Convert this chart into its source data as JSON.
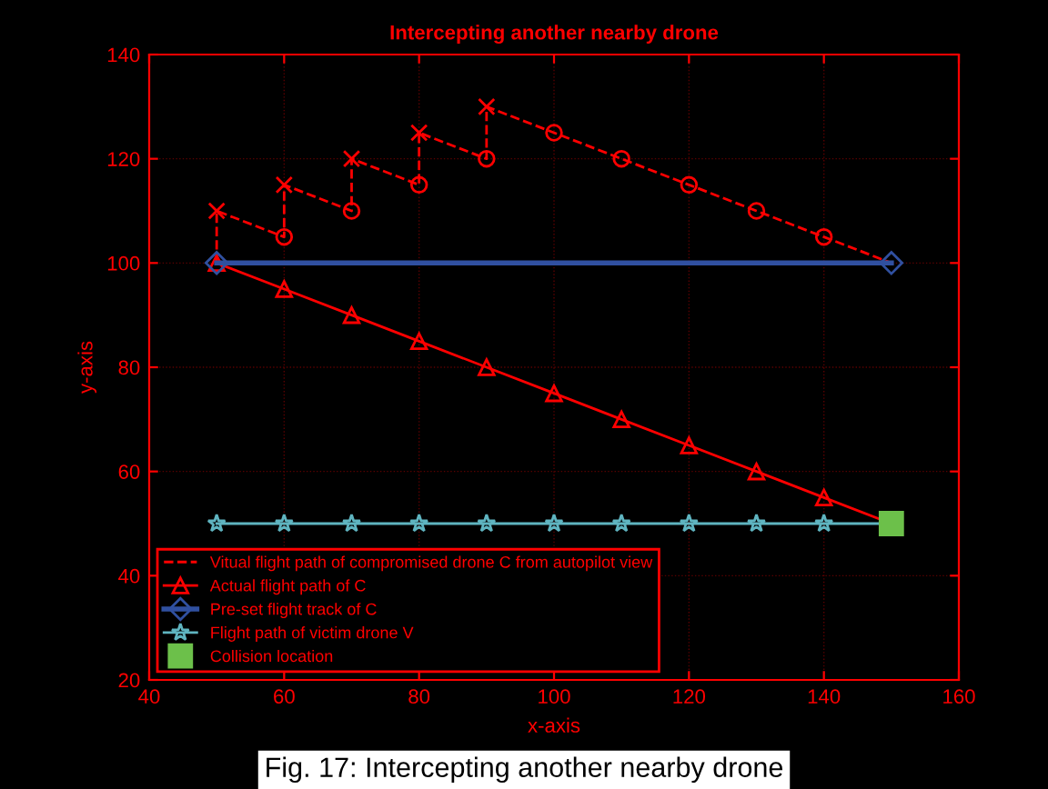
{
  "chart_data": {
    "type": "line",
    "title": "Intercepting another nearby drone",
    "xlabel": "x-axis",
    "ylabel": "y-axis",
    "xlim": [
      40,
      160
    ],
    "xticks": [
      40,
      60,
      80,
      100,
      120,
      140,
      160
    ],
    "ylim": [
      20,
      140
    ],
    "yticks": [
      20,
      40,
      60,
      80,
      100,
      120,
      140
    ],
    "grid": true,
    "legend": "bottom left",
    "annotations": [
      "Fig. 17: Intercepting another nearby drone"
    ],
    "series": [
      {
        "name": "Vitual flight path of compromised drone C from autopilot view",
        "color": "#ff0000",
        "line_style": "dashed",
        "marker": "none",
        "x": [
          50,
          50,
          60,
          60,
          70,
          70,
          80,
          80,
          90,
          90,
          100,
          110,
          120,
          130,
          140,
          150
        ],
        "values": [
          100,
          110,
          105,
          115,
          110,
          120,
          115,
          125,
          120,
          130,
          125,
          120,
          115,
          110,
          105,
          100
        ]
      },
      {
        "type": "scatter",
        "color": "#ff0000",
        "marker": "cross",
        "x": [
          50,
          60,
          70,
          80,
          90
        ],
        "values": [
          110,
          115,
          120,
          125,
          130
        ]
      },
      {
        "type": "scatter",
        "color": "#ff0000",
        "marker": "circle",
        "x": [
          60,
          70,
          80,
          90,
          100,
          110,
          120,
          130,
          140
        ],
        "values": [
          105,
          110,
          115,
          120,
          125,
          120,
          115,
          110,
          105
        ]
      },
      {
        "name": "Actual flight path of C",
        "color": "#ff0000",
        "line_style": "solid",
        "marker": "triangle",
        "x": [
          50,
          60,
          70,
          80,
          90,
          100,
          110,
          120,
          130,
          140,
          150
        ],
        "values": [
          100,
          95,
          90,
          85,
          80,
          75,
          70,
          65,
          60,
          55,
          50
        ]
      },
      {
        "name": "Pre-set flight track of C",
        "color": "#3050a0",
        "line_style": "solid",
        "marker": "diamond",
        "x": [
          50,
          150
        ],
        "values": [
          100,
          100
        ]
      },
      {
        "name": "Flight path of victim drone V",
        "color": "#5fb4c0",
        "line_style": "solid",
        "marker": "star",
        "x": [
          50,
          60,
          70,
          80,
          90,
          100,
          110,
          120,
          130,
          140,
          150
        ],
        "values": [
          50,
          50,
          50,
          50,
          50,
          50,
          50,
          50,
          50,
          50,
          50
        ]
      },
      {
        "name": "Collision location",
        "type": "scatter",
        "color": "#6cc04a",
        "marker": "square",
        "x": [
          150
        ],
        "values": [
          50
        ]
      }
    ]
  }
}
